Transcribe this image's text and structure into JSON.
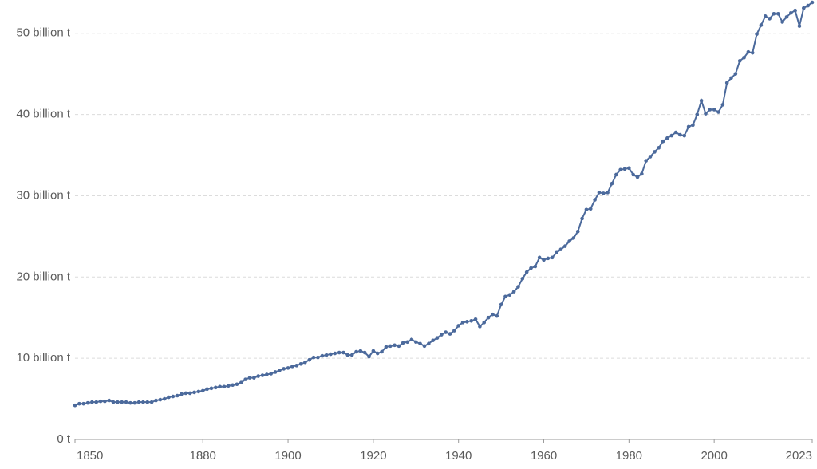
{
  "chart_data": {
    "type": "line",
    "x": [
      1850,
      1851,
      1852,
      1853,
      1854,
      1855,
      1856,
      1857,
      1858,
      1859,
      1860,
      1861,
      1862,
      1863,
      1864,
      1865,
      1866,
      1867,
      1868,
      1869,
      1870,
      1871,
      1872,
      1873,
      1874,
      1875,
      1876,
      1877,
      1878,
      1879,
      1880,
      1881,
      1882,
      1883,
      1884,
      1885,
      1886,
      1887,
      1888,
      1889,
      1890,
      1891,
      1892,
      1893,
      1894,
      1895,
      1896,
      1897,
      1898,
      1899,
      1900,
      1901,
      1902,
      1903,
      1904,
      1905,
      1906,
      1907,
      1908,
      1909,
      1910,
      1911,
      1912,
      1913,
      1914,
      1915,
      1916,
      1917,
      1918,
      1919,
      1920,
      1921,
      1922,
      1923,
      1924,
      1925,
      1926,
      1927,
      1928,
      1929,
      1930,
      1931,
      1932,
      1933,
      1934,
      1935,
      1936,
      1937,
      1938,
      1939,
      1940,
      1941,
      1942,
      1943,
      1944,
      1945,
      1946,
      1947,
      1948,
      1949,
      1950,
      1951,
      1952,
      1953,
      1954,
      1955,
      1956,
      1957,
      1958,
      1959,
      1960,
      1961,
      1962,
      1963,
      1964,
      1965,
      1966,
      1967,
      1968,
      1969,
      1970,
      1971,
      1972,
      1973,
      1974,
      1975,
      1976,
      1977,
      1978,
      1979,
      1980,
      1981,
      1982,
      1983,
      1984,
      1985,
      1986,
      1987,
      1988,
      1989,
      1990,
      1991,
      1992,
      1993,
      1994,
      1995,
      1996,
      1997,
      1998,
      1999,
      2000,
      2001,
      2002,
      2003,
      2004,
      2005,
      2006,
      2007,
      2008,
      2009,
      2010,
      2011,
      2012,
      2013,
      2014,
      2015,
      2016,
      2017,
      2018,
      2019,
      2020,
      2021,
      2022,
      2023
    ],
    "series": [
      {
        "color": "#4c6a9c",
        "values": [
          4.2,
          4.4,
          4.4,
          4.5,
          4.6,
          4.6,
          4.7,
          4.7,
          4.8,
          4.6,
          4.6,
          4.6,
          4.6,
          4.5,
          4.5,
          4.6,
          4.6,
          4.6,
          4.6,
          4.8,
          4.9,
          5.0,
          5.2,
          5.3,
          5.4,
          5.6,
          5.7,
          5.7,
          5.8,
          5.9,
          6.0,
          6.2,
          6.3,
          6.4,
          6.5,
          6.5,
          6.6,
          6.7,
          6.8,
          7.0,
          7.4,
          7.6,
          7.6,
          7.8,
          7.9,
          8.0,
          8.1,
          8.3,
          8.5,
          8.7,
          8.8,
          9.0,
          9.1,
          9.3,
          9.5,
          9.8,
          10.1,
          10.1,
          10.3,
          10.4,
          10.5,
          10.6,
          10.7,
          10.7,
          10.4,
          10.4,
          10.8,
          10.9,
          10.7,
          10.2,
          10.9,
          10.6,
          10.8,
          11.4,
          11.5,
          11.6,
          11.5,
          11.9,
          12.0,
          12.3,
          12.0,
          11.8,
          11.5,
          11.8,
          12.2,
          12.5,
          12.9,
          13.2,
          13.0,
          13.4,
          14.0,
          14.4,
          14.5,
          14.6,
          14.8,
          13.9,
          14.4,
          15.0,
          15.4,
          15.2,
          16.6,
          17.6,
          17.8,
          18.2,
          18.8,
          19.8,
          20.6,
          21.1,
          21.3,
          22.4,
          22.1,
          22.3,
          22.4,
          23.0,
          23.4,
          23.8,
          24.4,
          24.8,
          25.6,
          27.2,
          28.3,
          28.4,
          29.5,
          30.4,
          30.3,
          30.4,
          31.5,
          32.6,
          33.2,
          33.3,
          33.4,
          32.6,
          32.3,
          32.7,
          34.3,
          34.8,
          35.4,
          35.9,
          36.7,
          37.1,
          37.4,
          37.8,
          37.5,
          37.4,
          38.5,
          38.7,
          40.0,
          41.7,
          40.1,
          40.6,
          40.6,
          40.3,
          41.2,
          43.9,
          44.5,
          45.0,
          46.6,
          47.0,
          47.7,
          47.6,
          49.9,
          51.0,
          52.1,
          51.8,
          52.4,
          52.4,
          51.4,
          52.0,
          52.5,
          52.8,
          50.9,
          53.1,
          53.4,
          53.8
        ]
      }
    ],
    "xlim": [
      1850,
      2023
    ],
    "xticks": [
      1850,
      1880,
      1900,
      1920,
      1940,
      1960,
      1980,
      2000,
      2023
    ],
    "ylim": [
      0,
      54
    ],
    "yticks": [
      {
        "value": 0,
        "label": "0 t"
      },
      {
        "value": 10,
        "label": "10 billion t"
      },
      {
        "value": 20,
        "label": "20 billion t"
      },
      {
        "value": 30,
        "label": "30 billion t"
      },
      {
        "value": 40,
        "label": "40 billion t"
      },
      {
        "value": 50,
        "label": "50 billion t"
      }
    ],
    "grid": true
  }
}
